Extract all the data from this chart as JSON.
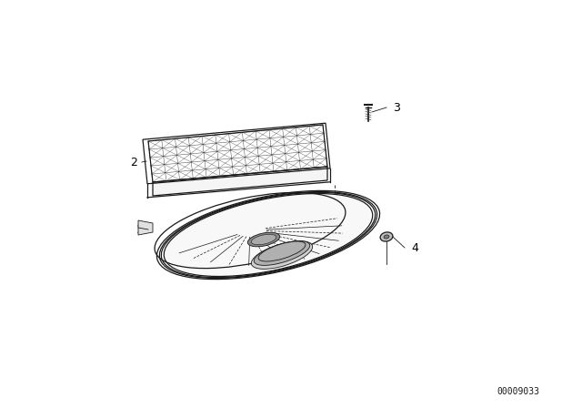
{
  "bg_color": "#ffffff",
  "line_color": "#1a1a1a",
  "fig_width": 6.4,
  "fig_height": 4.48,
  "dpi": 100,
  "catalog_number": "00009033",
  "catalog_fontsize": 7,
  "label_fontsize": 9
}
